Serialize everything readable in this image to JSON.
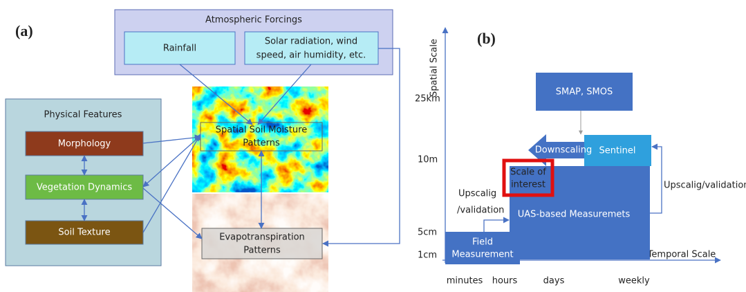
{
  "panel_a": {
    "label": "(a)",
    "atmospheric_forcings": {
      "title": "Atmospheric Forcings",
      "items": [
        [
          "Rainfall"
        ],
        [
          "Solar radiation, wind",
          "speed, air humidity, etc."
        ]
      ]
    },
    "physical_features": {
      "title": "Physical Features",
      "items": [
        "Morphology",
        "Vegetation Dynamics",
        "Soil Texture"
      ]
    },
    "maps": [
      [
        "Spatial Soil Moisture",
        "Patterns"
      ],
      [
        "Evapotranspiration",
        "Patterns"
      ]
    ]
  },
  "panel_b": {
    "label": "(b)",
    "y_axis_title": "Spatial Scale",
    "x_axis_title": "Temporal Scale",
    "y_labels": [
      "25km",
      "10m",
      "5cm",
      "1cm"
    ],
    "x_labels": [
      "minutes",
      "hours",
      "days",
      "weekly"
    ],
    "boxes": {
      "smap": "SMAP, SMOS",
      "sentinel": "Sentinel",
      "downscaling": "Downscaling",
      "uas": "UAS-based Measuremets",
      "field": [
        "Field",
        "Measurement"
      ],
      "scale_of_interest": [
        "Scale of",
        "interest"
      ]
    },
    "upscaling_left": [
      "Upscalig",
      "/validation"
    ],
    "upscaling_right": "Upscalig/validation"
  }
}
